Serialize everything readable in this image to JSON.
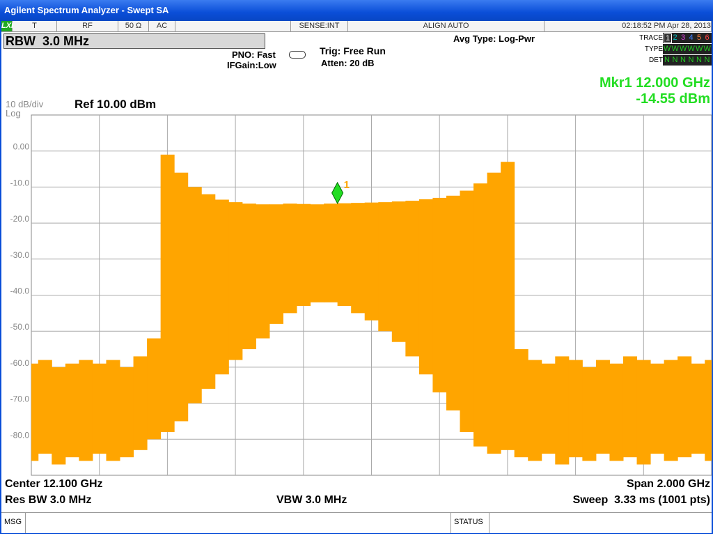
{
  "ui": {
    "window_title": "Agilent Spectrum Analyzer - Swept SA",
    "status_items": [
      "LXI",
      "T",
      "RF",
      "50 Ω",
      "AC",
      "SENSE:INT",
      "ALIGN AUTO",
      "02:18:52 PM Apr 28, 2013"
    ],
    "rbw": "RBW  3.0 MHz",
    "pno": "PNO: Fast",
    "ifgain": "IFGain:Low",
    "trig": "Trig: Free Run",
    "atten": "Atten: 20 dB",
    "avg_type": "Avg Type: Log-Pwr",
    "trace_label": "TRACE",
    "type_label": "TYPE",
    "det_label": "DET",
    "trace_numbers": [
      "1",
      "2",
      "3",
      "4",
      "5",
      "6"
    ],
    "trace_types": [
      "W",
      "W",
      "W",
      "W",
      "W",
      "W"
    ],
    "trace_dets": [
      "N",
      "N",
      "N",
      "N",
      "N",
      "N"
    ],
    "marker_freq": "Mkr1 12.000 GHz",
    "marker_level": "-14.55 dBm",
    "scale": "10 dB/div",
    "scale_type": "Log",
    "ref": "Ref 10.00 dBm",
    "center": "Center 12.100 GHz",
    "res_bw": "Res BW 3.0 MHz",
    "vbw": "VBW 3.0 MHz",
    "span": "Span 2.000 GHz",
    "sweep": "Sweep  3.33 ms (1001 pts)",
    "msg": "MSG",
    "status": "STATUS"
  },
  "chart_data": {
    "type": "band",
    "color": "#ffa500",
    "grid": true,
    "xlim": [
      11.1,
      13.1
    ],
    "ylim": [
      -90,
      10
    ],
    "yticks": [
      {
        "value": 0,
        "label": "0.00"
      },
      {
        "value": -10,
        "label": "-10.0"
      },
      {
        "value": -20,
        "label": "-20.0"
      },
      {
        "value": -30,
        "label": "-30.0"
      },
      {
        "value": -40,
        "label": "-40.0"
      },
      {
        "value": -50,
        "label": "-50.0"
      },
      {
        "value": -60,
        "label": "-60.0"
      },
      {
        "value": -70,
        "label": "-70.0"
      },
      {
        "value": -80,
        "label": "-80.0"
      }
    ],
    "x": [
      11.1,
      11.14,
      11.18,
      11.22,
      11.26,
      11.3,
      11.34,
      11.38,
      11.42,
      11.46,
      11.5,
      11.54,
      11.58,
      11.62,
      11.66,
      11.7,
      11.74,
      11.78,
      11.82,
      11.86,
      11.9,
      11.94,
      11.98,
      12.02,
      12.06,
      12.1,
      12.14,
      12.18,
      12.22,
      12.26,
      12.3,
      12.34,
      12.38,
      12.42,
      12.46,
      12.5,
      12.54,
      12.58,
      12.62,
      12.66,
      12.7,
      12.74,
      12.78,
      12.82,
      12.86,
      12.9,
      12.94,
      12.98,
      13.02,
      13.06,
      13.1
    ],
    "values": [
      -59,
      -58,
      -60,
      -59,
      -58,
      -59,
      -58,
      -60,
      -57,
      -52,
      -1,
      -6,
      -10,
      -12,
      -13.5,
      -14.2,
      -14.6,
      -14.8,
      -14.8,
      -14.6,
      -14.7,
      -14.8,
      -14.6,
      -14.5,
      -14.4,
      -14.3,
      -14.2,
      -14,
      -13.8,
      -13.4,
      -13,
      -12.4,
      -11,
      -9,
      -6,
      -3,
      -55,
      -58,
      -59,
      -57,
      -58,
      -60,
      -58,
      -59,
      -57,
      -58,
      -59,
      -58,
      -57,
      -59,
      -58
    ],
    "min_values": [
      -86,
      -84,
      -87,
      -85,
      -86,
      -84,
      -86,
      -85,
      -83,
      -80,
      -78,
      -75,
      -70,
      -66,
      -62,
      -58,
      -55,
      -52,
      -48,
      -45,
      -43,
      -42,
      -42,
      -43,
      -45,
      -47,
      -50,
      -53,
      -57,
      -62,
      -67,
      -72,
      -78,
      -82,
      -84,
      -83,
      -85,
      -86,
      -84,
      -87,
      -85,
      -86,
      -84,
      -86,
      -85,
      -87,
      -84,
      -86,
      -85,
      -84,
      -86
    ],
    "markers": [
      {
        "x": 12.0,
        "y": -14.55,
        "label": "1",
        "color": "#22dd22"
      }
    ]
  }
}
